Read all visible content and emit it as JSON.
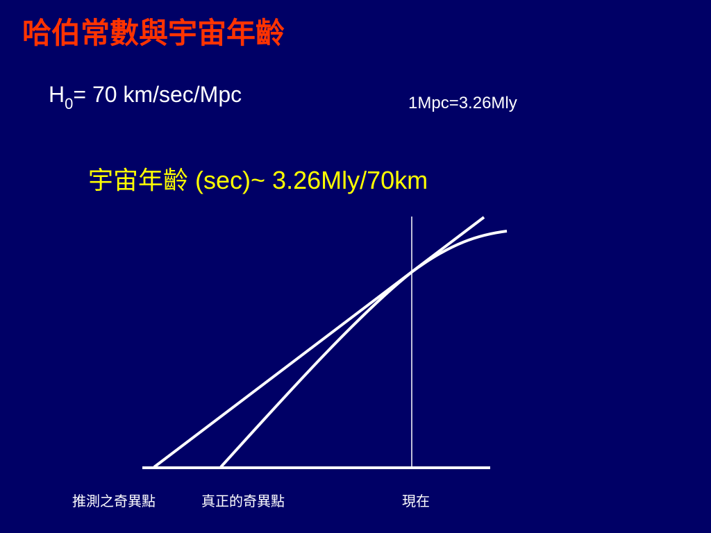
{
  "header": {
    "title": "哈伯常數與宇宙年齡"
  },
  "body": {
    "hubble": {
      "symbol": "H",
      "subscript": "0",
      "value": "= 70 km/sec/Mpc"
    },
    "conversion": "1Mpc=3.26Mly",
    "age": {
      "label": "宇宙年齡",
      "formula": " (sec)~ 3.26Mly/70km"
    }
  },
  "diagram": {
    "labels": [
      "推測之奇異點",
      "真正的奇異點",
      "現在"
    ]
  }
}
